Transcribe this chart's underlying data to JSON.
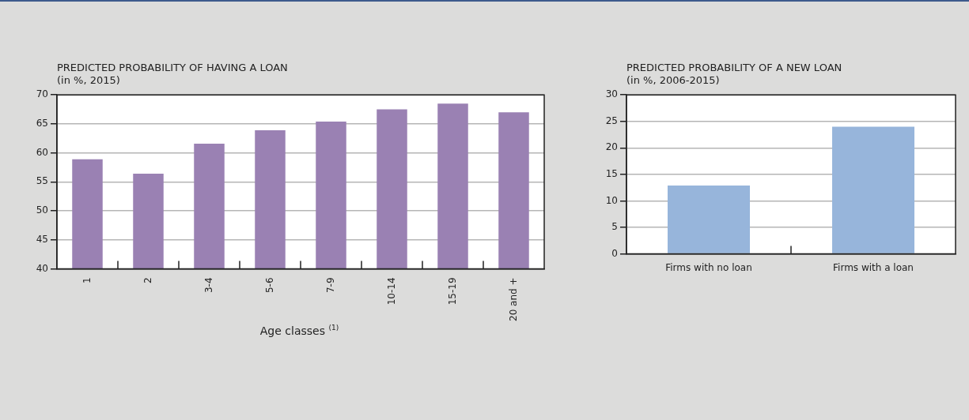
{
  "chart_data": [
    {
      "type": "bar",
      "title": "PREDICTED PROBABILITY OF HAVING A LOAN",
      "subtitle": "(in %, 2015)",
      "xlabel": "Age classes $^{(1)}$",
      "categories": [
        "1",
        "2",
        "3-4",
        "5-6",
        "7-9",
        "10-14",
        "15-19",
        "20 and +"
      ],
      "values": [
        58.9,
        56.4,
        61.6,
        63.9,
        65.4,
        67.5,
        68.5,
        67.0
      ],
      "color": "#9a81b3",
      "ylim": [
        40,
        70
      ],
      "yticks": [
        40,
        45,
        50,
        55,
        60,
        65,
        70
      ],
      "grid": "y"
    },
    {
      "type": "bar",
      "title": "PREDICTED PROBABILITY OF A NEW LOAN",
      "subtitle": "(in %, 2006-2015)",
      "categories": [
        "Firms with no loan",
        "Firms with a loan"
      ],
      "values": [
        12.9,
        24.0
      ],
      "color": "#97b5db",
      "ylim": [
        0,
        30
      ],
      "yticks": [
        0,
        5,
        10,
        15,
        20,
        25,
        30
      ],
      "grid": "y"
    }
  ]
}
